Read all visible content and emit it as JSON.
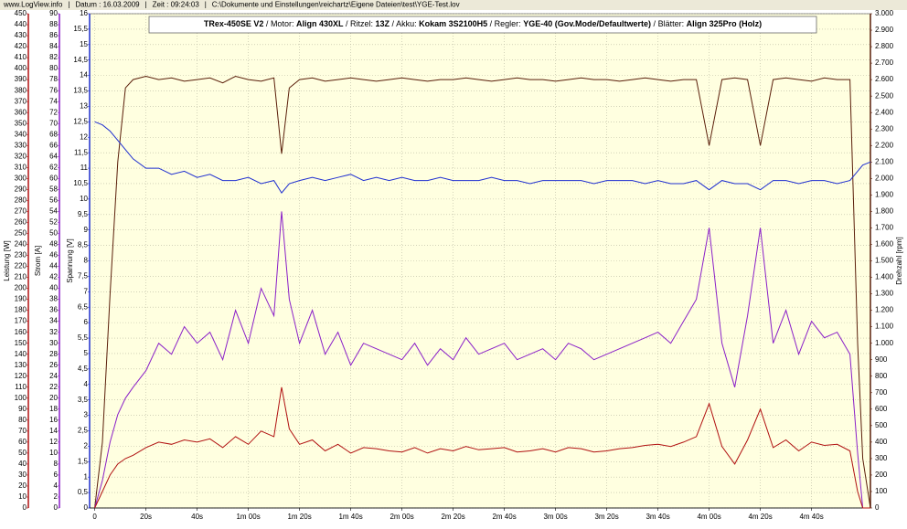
{
  "header": {
    "items": [
      "www.LogView.info",
      "Datum : 16.03.2009",
      "Zeit : 09:24:03",
      "C:\\Dokumente und Einstellungen\\reichartz\\Eigene Dateien\\test\\YGE-Test.lov"
    ]
  },
  "info": {
    "model": "TRex-450SE V2",
    "specs": [
      {
        "label": "Motor:",
        "value": "Align 430XL"
      },
      {
        "label": "Ritzel:",
        "value": "13Z"
      },
      {
        "label": "Akku:",
        "value": "Kokam 3S2100H5"
      },
      {
        "label": "Regler:",
        "value": "YGE-40 (Gov.Mode/Defaultwerte)"
      },
      {
        "label": "Blätter:",
        "value": "Align 325Pro (Holz)"
      }
    ]
  },
  "chart_data": {
    "type": "line",
    "ylabel": "Spannung [V]",
    "y2label": "Drehzahl [rpm]",
    "y3label": "Strom [A]",
    "y4label": "Leistung [W]",
    "grid": true,
    "x": [
      0,
      3,
      6,
      9,
      12,
      15,
      20,
      25,
      30,
      35,
      40,
      45,
      50,
      55,
      60,
      65,
      70,
      73,
      76,
      80,
      85,
      90,
      95,
      100,
      105,
      110,
      115,
      120,
      125,
      130,
      135,
      140,
      145,
      150,
      155,
      160,
      165,
      170,
      175,
      180,
      185,
      190,
      195,
      200,
      205,
      210,
      215,
      220,
      225,
      230,
      235,
      240,
      245,
      250,
      255,
      260,
      265,
      270,
      275,
      280,
      285,
      290,
      295,
      298,
      300,
      303
    ],
    "xlim": [
      -2,
      303
    ],
    "xticks": [
      0,
      {
        "value": 20,
        "label": "20s"
      },
      {
        "value": 40,
        "label": "40s"
      },
      {
        "value": 60,
        "label": "1m 00s"
      },
      {
        "value": 80,
        "label": "1m 20s"
      },
      {
        "value": 100,
        "label": "1m 40s"
      },
      {
        "value": 120,
        "label": "2m 00s"
      },
      {
        "value": 140,
        "label": "2m 20s"
      },
      {
        "value": 160,
        "label": "2m 40s"
      },
      {
        "value": 180,
        "label": "3m 00s"
      },
      {
        "value": 200,
        "label": "3m 20s"
      },
      {
        "value": 220,
        "label": "3m 40s"
      },
      {
        "value": 240,
        "label": "4m 00s"
      },
      {
        "value": 260,
        "label": "4m 20s"
      },
      {
        "value": 280,
        "label": "4m 40s"
      }
    ],
    "ylim": [
      0,
      16
    ],
    "yticks": [
      0,
      {
        "value": 0.5,
        "label": "0,5"
      },
      1,
      {
        "value": 1.5,
        "label": "1,5"
      },
      2,
      {
        "value": 2.5,
        "label": "2,5"
      },
      3,
      {
        "value": 3.5,
        "label": "3,5"
      },
      4,
      {
        "value": 4.5,
        "label": "4,5"
      },
      5,
      {
        "value": 5.5,
        "label": "5,5"
      },
      6,
      {
        "value": 6.5,
        "label": "6,5"
      },
      7,
      {
        "value": 7.5,
        "label": "7,5"
      },
      8,
      {
        "value": 8.5,
        "label": "8,5"
      },
      9,
      {
        "value": 9.5,
        "label": "9,5"
      },
      10,
      {
        "value": 10.5,
        "label": "10,5"
      },
      11,
      {
        "value": 11.5,
        "label": "11,5"
      },
      12,
      {
        "value": 12.5,
        "label": "12,5"
      },
      13,
      {
        "value": 13.5,
        "label": "13,5"
      },
      14,
      {
        "value": 14.5,
        "label": "14,5"
      },
      15,
      {
        "value": 15.5,
        "label": "15,5"
      },
      16
    ],
    "y2lim": [
      0,
      3000
    ],
    "y2ticks": [
      0,
      100,
      200,
      300,
      400,
      500,
      600,
      700,
      800,
      900,
      {
        "value": 1000,
        "label": "1.000"
      },
      {
        "value": 1100,
        "label": "1.100"
      },
      {
        "value": 1200,
        "label": "1.200"
      },
      {
        "value": 1300,
        "label": "1.300"
      },
      {
        "value": 1400,
        "label": "1.400"
      },
      {
        "value": 1500,
        "label": "1.500"
      },
      {
        "value": 1600,
        "label": "1.600"
      },
      {
        "value": 1700,
        "label": "1.700"
      },
      {
        "value": 1800,
        "label": "1.800"
      },
      {
        "value": 1900,
        "label": "1.900"
      },
      {
        "value": 2000,
        "label": "2.000"
      },
      {
        "value": 2100,
        "label": "2.100"
      },
      {
        "value": 2200,
        "label": "2.200"
      },
      {
        "value": 2300,
        "label": "2.300"
      },
      {
        "value": 2400,
        "label": "2.400"
      },
      {
        "value": 2500,
        "label": "2.500"
      },
      {
        "value": 2600,
        "label": "2.600"
      },
      {
        "value": 2700,
        "label": "2.700"
      },
      {
        "value": 2800,
        "label": "2.800"
      },
      {
        "value": 2900,
        "label": "2.900"
      },
      {
        "value": 3000,
        "label": "3.000"
      }
    ],
    "y3lim": [
      0,
      90
    ],
    "y3ticks": [
      0,
      2,
      4,
      6,
      8,
      10,
      12,
      14,
      16,
      18,
      20,
      22,
      24,
      26,
      28,
      30,
      32,
      34,
      36,
      38,
      40,
      42,
      44,
      46,
      48,
      50,
      52,
      54,
      56,
      58,
      60,
      62,
      64,
      66,
      68,
      70,
      72,
      74,
      76,
      78,
      80,
      82,
      84,
      86,
      88,
      90
    ],
    "y4lim": [
      0,
      450
    ],
    "y4ticks": [
      0,
      10,
      20,
      30,
      40,
      50,
      60,
      70,
      80,
      90,
      100,
      110,
      120,
      130,
      140,
      150,
      160,
      170,
      180,
      190,
      200,
      210,
      220,
      230,
      240,
      250,
      260,
      270,
      280,
      290,
      300,
      310,
      320,
      330,
      340,
      350,
      360,
      370,
      380,
      390,
      400,
      410,
      420,
      430,
      440,
      450
    ],
    "series": [
      {
        "color": "#5a1e0a",
        "axis": "y2",
        "values": [
          0,
          400,
          1300,
          2100,
          2550,
          2600,
          2620,
          2600,
          2610,
          2590,
          2600,
          2610,
          2580,
          2620,
          2600,
          2590,
          2610,
          2150,
          2550,
          2600,
          2610,
          2590,
          2600,
          2610,
          2600,
          2590,
          2600,
          2610,
          2600,
          2590,
          2600,
          2600,
          2610,
          2600,
          2590,
          2600,
          2610,
          2600,
          2600,
          2590,
          2600,
          2610,
          2600,
          2600,
          2590,
          2600,
          2610,
          2600,
          2590,
          2600,
          2600,
          2200,
          2600,
          2610,
          2600,
          2200,
          2600,
          2610,
          2600,
          2590,
          2610,
          2600,
          2600,
          1000,
          300,
          0
        ]
      },
      {
        "color": "#1f2fd0",
        "axis": "y",
        "values": [
          12.5,
          12.4,
          12.2,
          11.9,
          11.6,
          11.3,
          11.0,
          11.0,
          10.8,
          10.9,
          10.7,
          10.8,
          10.6,
          10.6,
          10.7,
          10.5,
          10.6,
          10.2,
          10.5,
          10.6,
          10.7,
          10.6,
          10.7,
          10.8,
          10.6,
          10.7,
          10.6,
          10.7,
          10.6,
          10.6,
          10.7,
          10.6,
          10.6,
          10.6,
          10.7,
          10.6,
          10.6,
          10.5,
          10.6,
          10.6,
          10.6,
          10.6,
          10.5,
          10.6,
          10.6,
          10.6,
          10.5,
          10.6,
          10.5,
          10.5,
          10.6,
          10.3,
          10.6,
          10.5,
          10.5,
          10.3,
          10.6,
          10.6,
          10.5,
          10.6,
          10.6,
          10.5,
          10.6,
          10.9,
          11.1,
          11.2
        ]
      },
      {
        "color": "#8a1fc8",
        "axis": "y3",
        "values": [
          0,
          5,
          12,
          17,
          20,
          22,
          25,
          30,
          28,
          33,
          30,
          32,
          27,
          36,
          30,
          40,
          35,
          54,
          38,
          30,
          36,
          28,
          32,
          26,
          30,
          29,
          28,
          27,
          30,
          26,
          29,
          27,
          31,
          28,
          29,
          30,
          27,
          28,
          29,
          27,
          30,
          29,
          27,
          28,
          29,
          30,
          31,
          32,
          30,
          34,
          38,
          51,
          30,
          22,
          35,
          51,
          30,
          36,
          28,
          34,
          31,
          32,
          28,
          10,
          0,
          0
        ]
      },
      {
        "color": "#b01010",
        "axis": "y4",
        "values": [
          0,
          15,
          30,
          40,
          45,
          48,
          55,
          60,
          58,
          62,
          60,
          63,
          55,
          65,
          58,
          70,
          65,
          110,
          72,
          58,
          62,
          52,
          58,
          50,
          55,
          54,
          52,
          51,
          55,
          50,
          54,
          52,
          56,
          53,
          54,
          55,
          51,
          52,
          54,
          51,
          55,
          54,
          51,
          52,
          54,
          55,
          57,
          58,
          56,
          60,
          65,
          95,
          56,
          40,
          62,
          90,
          55,
          62,
          52,
          60,
          57,
          58,
          52,
          15,
          0,
          0
        ]
      }
    ]
  }
}
